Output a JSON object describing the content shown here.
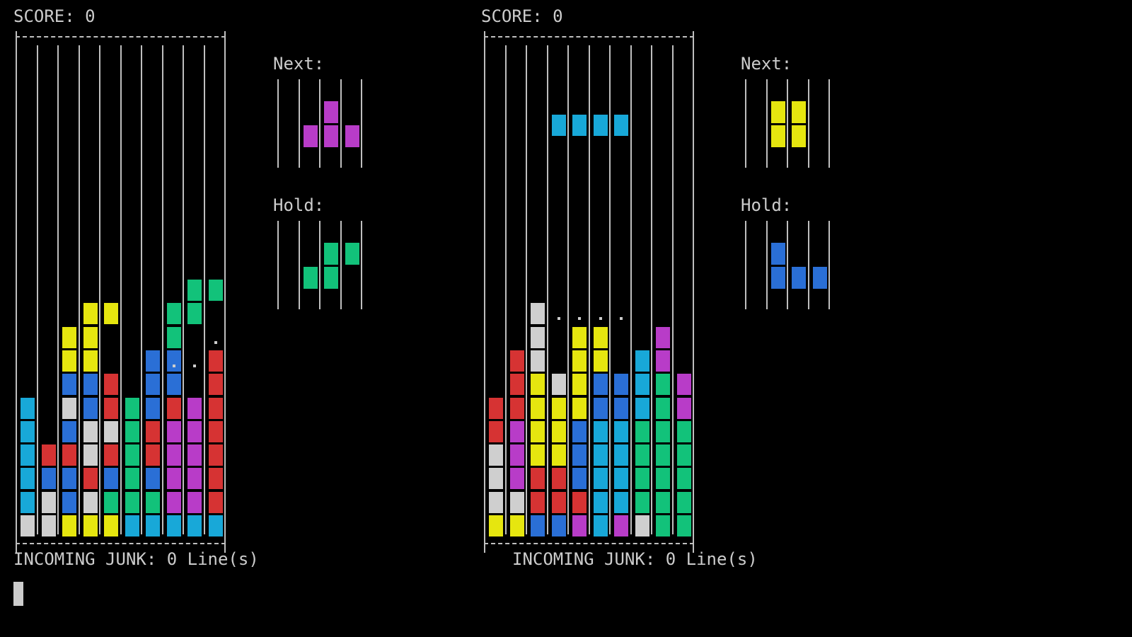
{
  "colors": {
    "c": "#18a8d8",
    "r": "#d63333",
    "y": "#e6e60f",
    "b": "#2a6fd6",
    "w": "#cfcfcf",
    "g": "#12c27a",
    "m": "#b83cc8"
  },
  "players": [
    {
      "score_label": "SCORE: 0",
      "next_label": "Next:",
      "hold_label": "Hold:",
      "junk_label": "INCOMING JUNK: 0 Line(s)",
      "board": [
        "..........",
        "..........",
        "..........",
        "..........",
        "..........",
        "..........",
        "..........",
        "..........",
        "..........",
        "..........",
        "........gg",
        "...yy..gg.",
        "..yy...g..",
        "..yy..bb.r",
        "..bbr.bb.r",
        "c.wbrgbrmr",
        "c.bwwgrmmr",
        "crrwrgrmmr",
        "cbbrbgbmmr",
        "cwbwgggmmr",
        "wwyyyccccc"
      ],
      "ghost_dots": [
        {
          "row": 12,
          "col": 9
        },
        {
          "row": 13,
          "col": 7
        },
        {
          "row": 13,
          "col": 8
        }
      ],
      "next_grid": [
        "....",
        "..m.",
        ".mmm",
        "...."
      ],
      "hold_grid": [
        "....",
        "..gg",
        ".gg.",
        "...."
      ]
    },
    {
      "score_label": "SCORE: 0",
      "next_label": "Next:",
      "hold_label": "Hold:",
      "junk_label": "INCOMING JUNK: 0 Line(s)",
      "board": [
        "..........",
        "..........",
        "..........",
        "...cccc...",
        "..........",
        "..........",
        "..........",
        "..........",
        "..........",
        "..........",
        "..........",
        "..w.......",
        "..w.yy..m.",
        ".rw.yy.cm.",
        ".rywybbcgm",
        "rryyybbcgm",
        "rmyybccggg",
        "wmyybccggg",
        "wmrrbccggg",
        "wwrrrccggg",
        "yybbmcmwgg"
      ],
      "ghost_dots": [
        {
          "row": 11,
          "col": 3
        },
        {
          "row": 11,
          "col": 4
        },
        {
          "row": 11,
          "col": 5
        },
        {
          "row": 11,
          "col": 6
        }
      ],
      "next_grid": [
        "....",
        ".yy.",
        ".yy.",
        "...."
      ],
      "hold_grid": [
        "....",
        ".b..",
        ".bbb",
        "...."
      ]
    }
  ]
}
